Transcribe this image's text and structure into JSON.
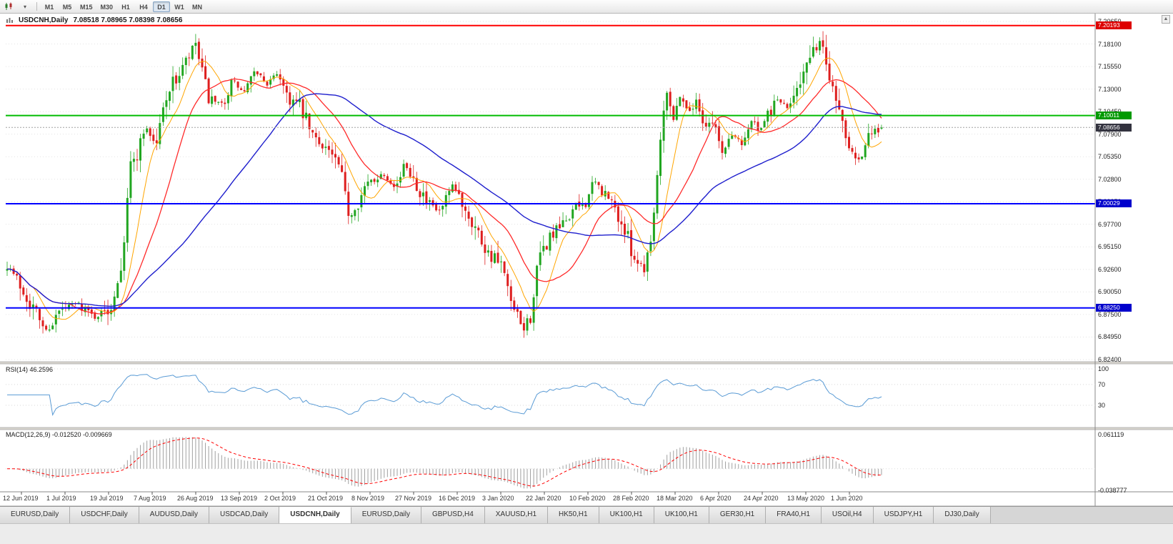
{
  "toolbar": {
    "timeframes": [
      {
        "label": "M1",
        "active": false
      },
      {
        "label": "M5",
        "active": false
      },
      {
        "label": "M15",
        "active": false
      },
      {
        "label": "M30",
        "active": false
      },
      {
        "label": "H1",
        "active": false
      },
      {
        "label": "H4",
        "active": false
      },
      {
        "label": "D1",
        "active": true
      },
      {
        "label": "W1",
        "active": false
      },
      {
        "label": "MN",
        "active": false
      }
    ],
    "scroll_up_glyph": "▲"
  },
  "chart": {
    "title": "USDCNH,Daily",
    "ohlc_text": "7.08518 7.08965 7.08398 7.08656"
  },
  "tabs": [
    {
      "label": "EURUSD,Daily",
      "active": false
    },
    {
      "label": "USDCHF,Daily",
      "active": false
    },
    {
      "label": "AUDUSD,Daily",
      "active": false
    },
    {
      "label": "USDCAD,Daily",
      "active": false
    },
    {
      "label": "USDCNH,Daily",
      "active": true
    },
    {
      "label": "EURUSD,Daily",
      "active": false
    },
    {
      "label": "GBPUSD,H4",
      "active": false
    },
    {
      "label": "XAUUSD,H1",
      "active": false
    },
    {
      "label": "HK50,H1",
      "active": false
    },
    {
      "label": "UK100,H1",
      "active": false
    },
    {
      "label": "UK100,H1",
      "active": false
    },
    {
      "label": "GER30,H1",
      "active": false
    },
    {
      "label": "FRA40,H1",
      "active": false
    },
    {
      "label": "USOil,H4",
      "active": false
    },
    {
      "label": "USDJPY,H1",
      "active": false
    },
    {
      "label": "DJ30,Daily",
      "active": false
    }
  ],
  "chart_data": {
    "type": "candlestick",
    "symbol": "USDCNH",
    "timeframe": "Daily",
    "num_candles": 270,
    "seed": 7,
    "clamp_high": 7.1968,
    "clamp_low": 6.842,
    "last_candle": {
      "open": 7.08518,
      "high": 7.08965,
      "low": 7.08398,
      "close": 7.08656
    },
    "price_axis": {
      "top": 7.2065,
      "bottom": 6.824,
      "labels": [
        "7.20650",
        "7.18100",
        "7.15550",
        "7.13000",
        "7.10450",
        "7.07900",
        "7.05350",
        "7.02800",
        "7.00250",
        "6.97700",
        "6.95150",
        "6.92600",
        "6.90050",
        "6.87500",
        "6.84950",
        "6.82400"
      ]
    },
    "levels": [
      {
        "value": "7.20193",
        "price": 7.20193,
        "color": "#FF0000",
        "label_bg": "#DD0000",
        "width": 2,
        "current": false
      },
      {
        "value": "7.10011",
        "price": 7.10011,
        "color": "#00BB00",
        "label_bg": "#009900",
        "width": 2,
        "current": false
      },
      {
        "value": "7.08656",
        "price": 7.08656,
        "color": "#A0A0A0",
        "label_bg": "#33333F",
        "width": 1,
        "current": true
      },
      {
        "value": "7.00029",
        "price": 7.00029,
        "color": "#0000FF",
        "label_bg": "#0000CC",
        "width": 2,
        "current": false
      },
      {
        "value": "6.88250",
        "price": 6.8825,
        "color": "#0000FF",
        "label_bg": "#0000CC",
        "width": 2,
        "current": false
      }
    ],
    "ma": [
      {
        "name": "ma-fast-orange",
        "period": 9,
        "color": "#FFA500",
        "width": 1
      },
      {
        "name": "ma-mid-red",
        "period": 20,
        "color": "#FF2A2A",
        "width": 1.3
      },
      {
        "name": "ma-slow-blue",
        "period": 55,
        "color": "#1F1FCD",
        "width": 1.4
      }
    ],
    "colors": {
      "up": "#21A621",
      "down": "#DE1F1F",
      "grid": "#E3E3E3",
      "bg": "#FFFFFF"
    },
    "dates": [
      "12 Jun 2019",
      "1 Jul 2019",
      "19 Jul 2019",
      "7 Aug 2019",
      "26 Aug 2019",
      "13 Sep 2019",
      "2 Oct 2019",
      "21 Oct 2019",
      "8 Nov 2019",
      "27 Nov 2019",
      "16 Dec 2019",
      "3 Jan 2020",
      "22 Jan 2020",
      "10 Feb 2020",
      "28 Feb 2020",
      "18 Mar 2020",
      "6 Apr 2020",
      "24 Apr 2020",
      "13 May 2020",
      "1 Jun 2020"
    ],
    "close_path": [
      [
        0.0,
        6.932
      ],
      [
        0.02,
        6.9
      ],
      [
        0.045,
        6.856
      ],
      [
        0.06,
        6.878
      ],
      [
        0.08,
        6.888
      ],
      [
        0.1,
        6.872
      ],
      [
        0.118,
        6.882
      ],
      [
        0.132,
        6.94
      ],
      [
        0.14,
        7.04
      ],
      [
        0.15,
        7.06
      ],
      [
        0.158,
        7.09
      ],
      [
        0.17,
        7.065
      ],
      [
        0.182,
        7.125
      ],
      [
        0.196,
        7.145
      ],
      [
        0.208,
        7.165
      ],
      [
        0.215,
        7.185
      ],
      [
        0.222,
        7.15
      ],
      [
        0.232,
        7.115
      ],
      [
        0.245,
        7.11
      ],
      [
        0.258,
        7.14
      ],
      [
        0.27,
        7.125
      ],
      [
        0.285,
        7.15
      ],
      [
        0.298,
        7.135
      ],
      [
        0.31,
        7.15
      ],
      [
        0.322,
        7.12
      ],
      [
        0.335,
        7.11
      ],
      [
        0.35,
        7.075
      ],
      [
        0.365,
        7.065
      ],
      [
        0.38,
        7.04
      ],
      [
        0.392,
        6.985
      ],
      [
        0.402,
        7.005
      ],
      [
        0.415,
        7.025
      ],
      [
        0.43,
        7.035
      ],
      [
        0.445,
        7.02
      ],
      [
        0.455,
        7.045
      ],
      [
        0.468,
        7.025
      ],
      [
        0.48,
        7.0
      ],
      [
        0.495,
        6.99
      ],
      [
        0.51,
        7.02
      ],
      [
        0.522,
        7.0
      ],
      [
        0.535,
        6.975
      ],
      [
        0.55,
        6.945
      ],
      [
        0.565,
        6.93
      ],
      [
        0.578,
        6.88
      ],
      [
        0.59,
        6.858
      ],
      [
        0.598,
        6.87
      ],
      [
        0.608,
        6.935
      ],
      [
        0.62,
        6.962
      ],
      [
        0.635,
        6.975
      ],
      [
        0.648,
        6.995
      ],
      [
        0.66,
        7.0
      ],
      [
        0.672,
        7.025
      ],
      [
        0.684,
        7.01
      ],
      [
        0.695,
        6.995
      ],
      [
        0.708,
        6.965
      ],
      [
        0.72,
        6.935
      ],
      [
        0.73,
        6.93
      ],
      [
        0.74,
        6.99
      ],
      [
        0.748,
        7.09
      ],
      [
        0.755,
        7.135
      ],
      [
        0.762,
        7.095
      ],
      [
        0.77,
        7.125
      ],
      [
        0.778,
        7.105
      ],
      [
        0.788,
        7.115
      ],
      [
        0.798,
        7.09
      ],
      [
        0.808,
        7.095
      ],
      [
        0.818,
        7.055
      ],
      [
        0.828,
        7.08
      ],
      [
        0.84,
        7.07
      ],
      [
        0.852,
        7.095
      ],
      [
        0.862,
        7.08
      ],
      [
        0.872,
        7.105
      ],
      [
        0.882,
        7.12
      ],
      [
        0.892,
        7.105
      ],
      [
        0.902,
        7.135
      ],
      [
        0.912,
        7.15
      ],
      [
        0.922,
        7.17
      ],
      [
        0.93,
        7.185
      ],
      [
        0.938,
        7.155
      ],
      [
        0.946,
        7.13
      ],
      [
        0.955,
        7.095
      ],
      [
        0.965,
        7.065
      ],
      [
        0.975,
        7.05
      ],
      [
        0.985,
        7.075
      ],
      [
        1.0,
        7.0866
      ]
    ],
    "rsi": {
      "label": "RSI(14) 46.2596",
      "period": 14,
      "color": "#5A9BD5",
      "axis": [
        "100",
        "70",
        "30"
      ],
      "axis_values": [
        100,
        70,
        30
      ]
    },
    "macd": {
      "label": "MACD(12,26,9) -0.012520 -0.009669",
      "fast": 12,
      "slow": 26,
      "signal": 9,
      "hist_color": "#A0A0A0",
      "signal_color": "#FF0000",
      "axis_top": {
        "text": "0.061119",
        "value": 0.061119
      },
      "axis_bottom": {
        "text": "-0.038777",
        "value": -0.038777
      }
    }
  }
}
